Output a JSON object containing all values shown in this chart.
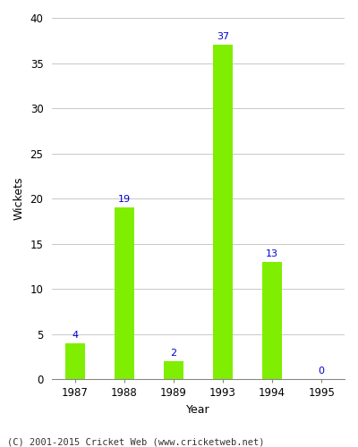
{
  "years": [
    "1987",
    "1988",
    "1989",
    "1993",
    "1994",
    "1995"
  ],
  "values": [
    4,
    19,
    2,
    37,
    13,
    0
  ],
  "bar_color": "#7fee00",
  "bar_edge_color": "#7fee00",
  "label_color": "#0000cc",
  "label_fontsize": 8,
  "ylabel": "Wickets",
  "xlabel": "Year",
  "ylim": [
    0,
    40
  ],
  "yticks": [
    0,
    5,
    10,
    15,
    20,
    25,
    30,
    35,
    40
  ],
  "grid_color": "#c8c8c8",
  "background_color": "#ffffff",
  "caption": "(C) 2001-2015 Cricket Web (www.cricketweb.net)",
  "caption_fontsize": 7.5,
  "tick_fontsize": 8.5,
  "axis_label_fontsize": 9,
  "bar_width": 0.4
}
